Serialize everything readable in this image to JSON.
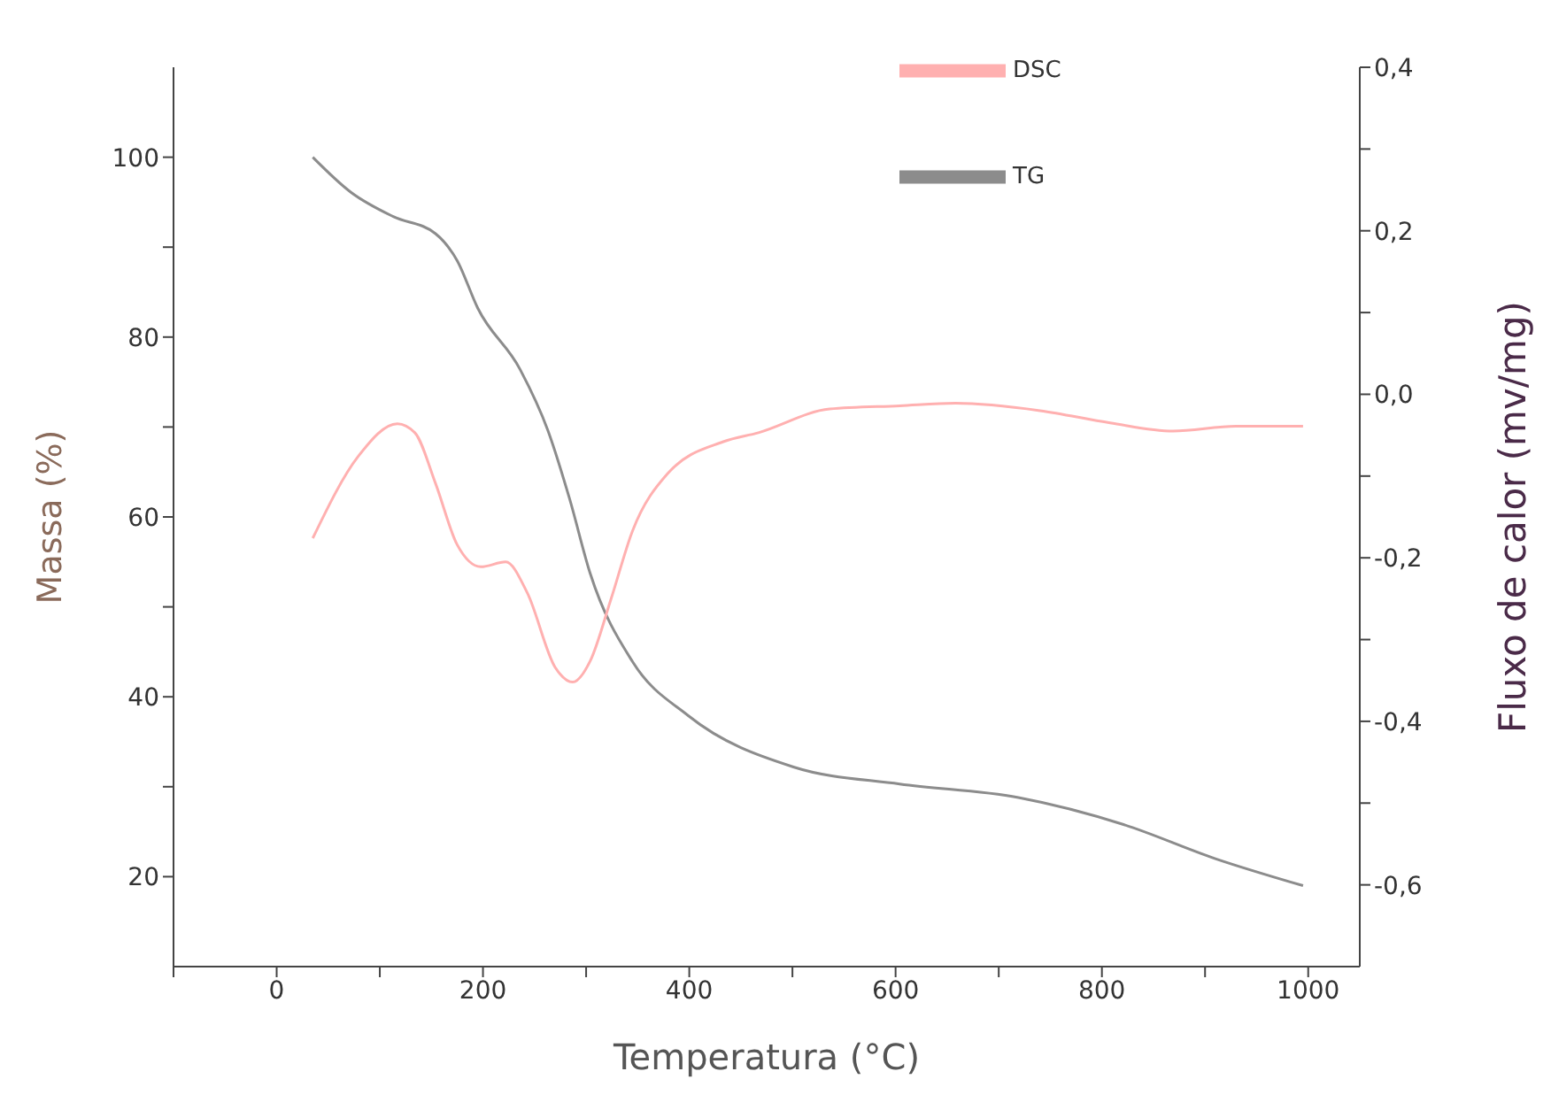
{
  "chart_data": {
    "type": "line",
    "xlabel": "Temperatura (°C)",
    "ylabel": "Massa (%)",
    "y2label": "Fluxo de calor (mv/mg)",
    "xlim": [
      -100,
      1050
    ],
    "xticks": [
      {
        "value": -100,
        "label": null
      },
      0,
      {
        "value": 100,
        "label": null
      },
      200,
      {
        "value": 300,
        "label": null
      },
      400,
      {
        "value": 500,
        "label": null
      },
      600,
      {
        "value": 700,
        "label": null
      },
      800,
      {
        "value": 900,
        "label": null
      },
      1000
    ],
    "ylim": [
      10,
      110
    ],
    "yticks": [
      20,
      {
        "value": 30,
        "label": null
      },
      40,
      {
        "value": 50,
        "label": null
      },
      60,
      {
        "value": 70,
        "label": null
      },
      80,
      {
        "value": 90,
        "label": null
      },
      100
    ],
    "y2lim": [
      -0.7,
      0.4
    ],
    "y2ticks": [
      {
        "value": -0.6,
        "label": "-0,6"
      },
      {
        "value": -0.5,
        "label": null
      },
      {
        "value": -0.4,
        "label": "-0,4"
      },
      {
        "value": -0.3,
        "label": null
      },
      {
        "value": -0.2,
        "label": "-0,2"
      },
      {
        "value": -0.1,
        "label": null
      },
      {
        "value": 0,
        "label": "0,0"
      },
      {
        "value": 0.1,
        "label": null
      },
      {
        "value": 0.2,
        "label": "0,2"
      },
      {
        "value": 0.3,
        "label": null
      },
      {
        "value": 0.4,
        "label": "0,4"
      }
    ],
    "grid": false,
    "legend": "top right",
    "marker": "none",
    "line_style": "solid",
    "series": [
      {
        "name": "TG",
        "color": "#8c8c8c",
        "x": [
          35,
          72,
          113,
          154,
          175,
          195,
          236,
          263,
          284,
          304,
          345,
          399,
          501,
          604,
          719,
          821,
          910,
          995
        ],
        "values": [
          100,
          96.1,
          93.4,
          91.5,
          88.5,
          83.2,
          76.4,
          69.6,
          62,
          53.7,
          43.9,
          37.9,
          32.2,
          30.3,
          28.8,
          25.8,
          22,
          19
        ]
      },
      {
        "name": "DSC",
        "color": "#ffb0b0",
        "axis": "y2",
        "x": [
          35,
          79,
          117,
          134,
          154,
          175,
          198,
          222,
          243,
          270,
          287,
          304,
          324,
          345,
          379,
          433,
          467,
          536,
          604,
          658,
          740,
          808,
          869,
          930,
          995
        ],
        "values": [
          -0.176,
          -0.076,
          -0.036,
          -0.047,
          -0.109,
          -0.184,
          -0.211,
          -0.205,
          -0.243,
          -0.334,
          -0.352,
          -0.326,
          -0.251,
          -0.167,
          -0.097,
          -0.058,
          -0.047,
          -0.018,
          -0.014,
          -0.011,
          -0.02,
          -0.035,
          -0.045,
          -0.039,
          -0.039
        ]
      }
    ]
  }
}
